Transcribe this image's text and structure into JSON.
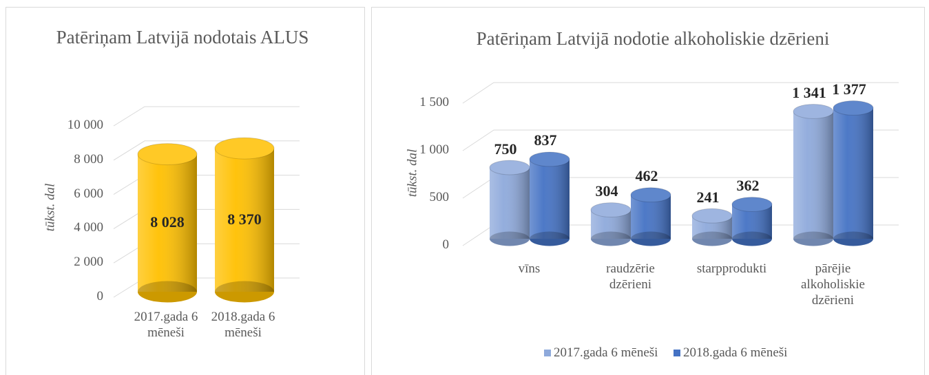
{
  "chart_data": [
    {
      "type": "bar",
      "title": "Patēriņam Latvijā nodotais ALUS",
      "y_label": "tūkst. dal",
      "categories": [
        "2017.gada 6 mēneši",
        "2018.gada 6 mēneši"
      ],
      "values": [
        8028,
        8370
      ],
      "value_labels": [
        "8 028",
        "8 370"
      ],
      "color": "#FFC000",
      "ylim": [
        0,
        10000
      ],
      "yticks": [
        0,
        {
          "value": 2000,
          "label": "2 000"
        },
        {
          "value": 4000,
          "label": "4 000"
        },
        {
          "value": 6000,
          "label": "6 000"
        },
        {
          "value": 8000,
          "label": "8 000"
        },
        {
          "value": 10000,
          "label": "10 000"
        }
      ],
      "grid": true
    },
    {
      "type": "bar",
      "title": "Patēriņam Latvijā nodotie alkoholiskie dzērieni",
      "y_label": "tūkst. dal",
      "categories": [
        "vīns",
        "raudzērie dzērieni",
        "starpprodukti",
        "pārējie alkoholiskie dzērieni"
      ],
      "series": [
        {
          "name": "2017.gada 6 mēneši",
          "color": "#8EA9DB",
          "values": [
            750,
            304,
            241,
            1341
          ],
          "value_labels": [
            "750",
            "304",
            "241",
            "1 341"
          ]
        },
        {
          "name": "2018.gada 6 mēneši",
          "color": "#4472C4",
          "values": [
            837,
            462,
            362,
            1377
          ],
          "value_labels": [
            "837",
            "462",
            "362",
            "1 377"
          ]
        }
      ],
      "ylim": [
        0,
        1500
      ],
      "yticks": [
        0,
        500,
        {
          "value": 1000,
          "label": "1 000"
        },
        {
          "value": 1500,
          "label": "1 500"
        }
      ],
      "grid": true,
      "legend": "bottom"
    }
  ]
}
